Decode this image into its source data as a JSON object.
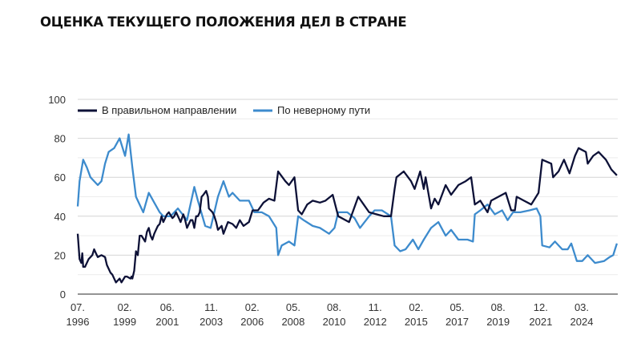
{
  "title": "ОЦЕНКА ТЕКУЩЕГО ПОЛОЖЕНИЯ ДЕЛ В СТРАНЕ",
  "chart_data": {
    "type": "line",
    "title": "ОЦЕНКА ТЕКУЩЕГО ПОЛОЖЕНИЯ ДЕЛ В СТРАНЕ",
    "xlabel": "",
    "ylabel": "",
    "ylim": [
      0,
      100
    ],
    "xlim": [
      1996.5,
      2026.15
    ],
    "yticks": [
      0,
      20,
      40,
      60,
      80,
      100
    ],
    "grid": true,
    "legend_position": "top",
    "xticks": [
      {
        "x": 1996.5,
        "line1": "07.",
        "line2": "1996"
      },
      {
        "x": 1999.08,
        "line1": "02.",
        "line2": "1999"
      },
      {
        "x": 2001.42,
        "line1": "06.",
        "line2": "2001"
      },
      {
        "x": 2003.83,
        "line1": "11.",
        "line2": "2003"
      },
      {
        "x": 2006.08,
        "line1": "02.",
        "line2": "2006"
      },
      {
        "x": 2008.33,
        "line1": "05.",
        "line2": "2008"
      },
      {
        "x": 2010.58,
        "line1": "08.",
        "line2": "2010"
      },
      {
        "x": 2012.83,
        "line1": "11.",
        "line2": "2012"
      },
      {
        "x": 2015.08,
        "line1": "02.",
        "line2": "2015"
      },
      {
        "x": 2017.33,
        "line1": "05.",
        "line2": "2017"
      },
      {
        "x": 2019.58,
        "line1": "08.",
        "line2": "2019"
      },
      {
        "x": 2021.92,
        "line1": "12.",
        "line2": "2021"
      },
      {
        "x": 2024.17,
        "line1": "03.",
        "line2": "2024"
      }
    ],
    "series": [
      {
        "name": "В правильном направлении",
        "color": "#0d1137",
        "points": [
          [
            1996.5,
            31
          ],
          [
            1996.6,
            18
          ],
          [
            1996.7,
            16
          ],
          [
            1996.75,
            21
          ],
          [
            1996.8,
            14
          ],
          [
            1996.9,
            14
          ],
          [
            1997.1,
            18
          ],
          [
            1997.3,
            20
          ],
          [
            1997.4,
            23
          ],
          [
            1997.5,
            21
          ],
          [
            1997.6,
            19
          ],
          [
            1997.8,
            20
          ],
          [
            1998.0,
            19
          ],
          [
            1998.1,
            15
          ],
          [
            1998.3,
            11
          ],
          [
            1998.4,
            10
          ],
          [
            1998.6,
            6
          ],
          [
            1998.7,
            7
          ],
          [
            1998.8,
            8
          ],
          [
            1998.9,
            6
          ],
          [
            1999.1,
            9
          ],
          [
            1999.2,
            9
          ],
          [
            1999.4,
            8
          ],
          [
            1999.45,
            9
          ],
          [
            1999.5,
            8
          ],
          [
            1999.6,
            12
          ],
          [
            1999.7,
            22
          ],
          [
            1999.8,
            20
          ],
          [
            1999.9,
            30
          ],
          [
            2000.0,
            30
          ],
          [
            2000.2,
            27
          ],
          [
            2000.3,
            32
          ],
          [
            2000.4,
            34
          ],
          [
            2000.5,
            30
          ],
          [
            2000.6,
            28
          ],
          [
            2000.7,
            31
          ],
          [
            2000.8,
            33
          ],
          [
            2000.9,
            35
          ],
          [
            2001.0,
            36
          ],
          [
            2001.1,
            40
          ],
          [
            2001.2,
            37
          ],
          [
            2001.4,
            41
          ],
          [
            2001.5,
            42
          ],
          [
            2001.7,
            39
          ],
          [
            2001.8,
            40
          ],
          [
            2001.9,
            42
          ],
          [
            2002.05,
            39
          ],
          [
            2002.15,
            37
          ],
          [
            2002.3,
            41
          ],
          [
            2002.4,
            38
          ],
          [
            2002.5,
            34
          ],
          [
            2002.7,
            38
          ],
          [
            2002.8,
            38
          ],
          [
            2002.9,
            34
          ],
          [
            2003.0,
            40
          ],
          [
            2003.1,
            40
          ],
          [
            2003.2,
            42
          ],
          [
            2003.3,
            50
          ],
          [
            2003.4,
            51
          ],
          [
            2003.55,
            53
          ],
          [
            2003.65,
            50
          ],
          [
            2003.7,
            44
          ],
          [
            2003.9,
            42
          ],
          [
            2004.0,
            40
          ],
          [
            2004.1,
            37
          ],
          [
            2004.2,
            33
          ],
          [
            2004.4,
            35
          ],
          [
            2004.5,
            31
          ],
          [
            2004.75,
            37
          ],
          [
            2005.0,
            36
          ],
          [
            2005.2,
            34
          ],
          [
            2005.4,
            38
          ],
          [
            2005.6,
            35
          ],
          [
            2005.9,
            37
          ],
          [
            2006.1,
            43
          ],
          [
            2006.4,
            43
          ],
          [
            2006.7,
            47
          ],
          [
            2007.0,
            49
          ],
          [
            2007.3,
            48
          ],
          [
            2007.5,
            63
          ],
          [
            2007.9,
            58
          ],
          [
            2008.1,
            56
          ],
          [
            2008.4,
            60
          ],
          [
            2008.6,
            43
          ],
          [
            2008.8,
            41
          ],
          [
            2009.1,
            46
          ],
          [
            2009.4,
            48
          ],
          [
            2009.8,
            47
          ],
          [
            2010.1,
            48
          ],
          [
            2010.5,
            51
          ],
          [
            2010.8,
            40
          ],
          [
            2011.4,
            37
          ],
          [
            2011.9,
            50
          ],
          [
            2012.2,
            46
          ],
          [
            2012.5,
            42
          ],
          [
            2012.9,
            41
          ],
          [
            2013.3,
            40
          ],
          [
            2013.7,
            40
          ],
          [
            2013.9,
            54
          ],
          [
            2014.0,
            60
          ],
          [
            2014.4,
            63
          ],
          [
            2014.8,
            58
          ],
          [
            2015.0,
            54
          ],
          [
            2015.3,
            63
          ],
          [
            2015.5,
            54
          ],
          [
            2015.6,
            60
          ],
          [
            2015.9,
            44
          ],
          [
            2016.1,
            49
          ],
          [
            2016.3,
            46
          ],
          [
            2016.7,
            56
          ],
          [
            2017.0,
            51
          ],
          [
            2017.4,
            56
          ],
          [
            2017.8,
            58
          ],
          [
            2018.1,
            60
          ],
          [
            2018.3,
            46
          ],
          [
            2018.6,
            48
          ],
          [
            2019.0,
            42
          ],
          [
            2019.2,
            48
          ],
          [
            2019.6,
            50
          ],
          [
            2020.0,
            52
          ],
          [
            2020.3,
            43
          ],
          [
            2020.5,
            43
          ],
          [
            2020.6,
            50
          ],
          [
            2021.0,
            48
          ],
          [
            2021.4,
            46
          ],
          [
            2021.8,
            52
          ],
          [
            2022.0,
            69
          ],
          [
            2022.5,
            67
          ],
          [
            2022.6,
            60
          ],
          [
            2022.9,
            63
          ],
          [
            2023.2,
            69
          ],
          [
            2023.5,
            62
          ],
          [
            2023.8,
            71
          ],
          [
            2024.0,
            75
          ],
          [
            2024.4,
            73
          ],
          [
            2024.5,
            67
          ],
          [
            2024.8,
            71
          ],
          [
            2025.1,
            73
          ],
          [
            2025.5,
            69
          ],
          [
            2025.8,
            64
          ],
          [
            2026.1,
            61
          ]
        ]
      },
      {
        "name": "По неверному пути",
        "color": "#3d8bcd",
        "points": [
          [
            1996.5,
            45
          ],
          [
            1996.6,
            58
          ],
          [
            1996.8,
            69
          ],
          [
            1997.0,
            65
          ],
          [
            1997.2,
            60
          ],
          [
            1997.4,
            58
          ],
          [
            1997.6,
            56
          ],
          [
            1997.8,
            58
          ],
          [
            1998.0,
            67
          ],
          [
            1998.2,
            73
          ],
          [
            1998.5,
            75
          ],
          [
            1998.8,
            80
          ],
          [
            1999.1,
            71
          ],
          [
            1999.3,
            82
          ],
          [
            1999.5,
            65
          ],
          [
            1999.7,
            50
          ],
          [
            2000.1,
            42
          ],
          [
            2000.4,
            52
          ],
          [
            2000.7,
            47
          ],
          [
            2001.0,
            42
          ],
          [
            2001.2,
            40
          ],
          [
            2001.6,
            40
          ],
          [
            2002.0,
            44
          ],
          [
            2002.5,
            38
          ],
          [
            2002.9,
            55
          ],
          [
            2003.1,
            48
          ],
          [
            2003.5,
            35
          ],
          [
            2003.8,
            34
          ],
          [
            2004.2,
            50
          ],
          [
            2004.5,
            58
          ],
          [
            2004.8,
            50
          ],
          [
            2005.0,
            52
          ],
          [
            2005.4,
            48
          ],
          [
            2005.9,
            48
          ],
          [
            2006.2,
            42
          ],
          [
            2006.6,
            42
          ],
          [
            2007.0,
            40
          ],
          [
            2007.4,
            34
          ],
          [
            2007.5,
            20
          ],
          [
            2007.7,
            25
          ],
          [
            2008.1,
            27
          ],
          [
            2008.4,
            25
          ],
          [
            2008.6,
            40
          ],
          [
            2008.9,
            38
          ],
          [
            2009.4,
            35
          ],
          [
            2009.8,
            34
          ],
          [
            2010.3,
            31
          ],
          [
            2010.6,
            34
          ],
          [
            2010.8,
            42
          ],
          [
            2011.3,
            42
          ],
          [
            2011.7,
            39
          ],
          [
            2012.0,
            34
          ],
          [
            2012.5,
            40
          ],
          [
            2012.8,
            43
          ],
          [
            2013.2,
            43
          ],
          [
            2013.7,
            40
          ],
          [
            2013.9,
            25
          ],
          [
            2014.2,
            22
          ],
          [
            2014.5,
            23
          ],
          [
            2014.9,
            28
          ],
          [
            2015.2,
            23
          ],
          [
            2015.5,
            28
          ],
          [
            2015.9,
            34
          ],
          [
            2016.3,
            37
          ],
          [
            2016.7,
            30
          ],
          [
            2017.0,
            33
          ],
          [
            2017.4,
            28
          ],
          [
            2017.9,
            28
          ],
          [
            2018.2,
            27
          ],
          [
            2018.3,
            41
          ],
          [
            2018.6,
            43
          ],
          [
            2019.0,
            46
          ],
          [
            2019.4,
            41
          ],
          [
            2019.8,
            43
          ],
          [
            2020.1,
            38
          ],
          [
            2020.4,
            42
          ],
          [
            2020.8,
            42
          ],
          [
            2021.3,
            43
          ],
          [
            2021.7,
            44
          ],
          [
            2021.9,
            40
          ],
          [
            2022.0,
            25
          ],
          [
            2022.4,
            24
          ],
          [
            2022.7,
            27
          ],
          [
            2023.1,
            23
          ],
          [
            2023.4,
            23
          ],
          [
            2023.6,
            26
          ],
          [
            2023.9,
            17
          ],
          [
            2024.2,
            17
          ],
          [
            2024.5,
            20
          ],
          [
            2024.9,
            16
          ],
          [
            2025.4,
            17
          ],
          [
            2025.7,
            19
          ],
          [
            2025.9,
            20
          ],
          [
            2026.1,
            26
          ]
        ]
      }
    ]
  }
}
